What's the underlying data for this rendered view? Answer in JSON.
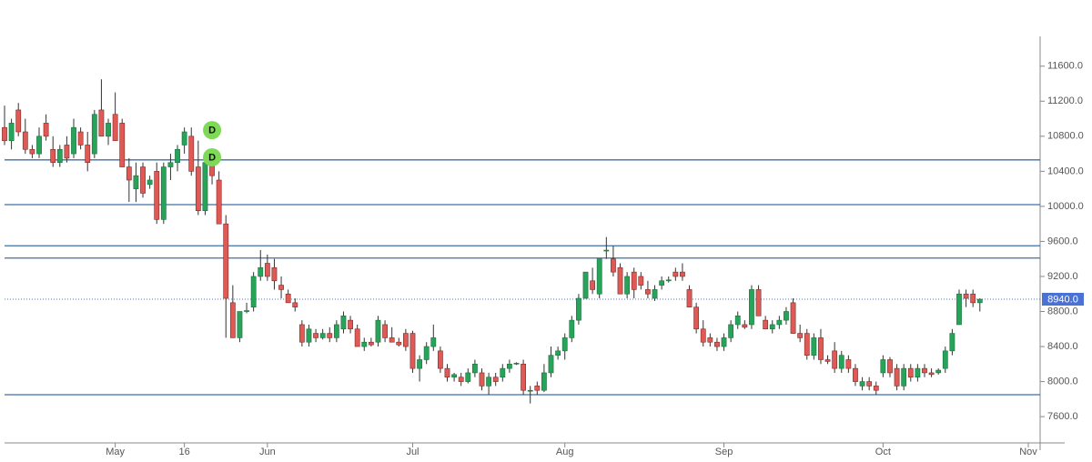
{
  "chart_data": {
    "type": "candlestick",
    "categories": [
      null,
      null,
      null,
      null,
      null,
      null,
      null,
      null,
      null,
      null,
      null,
      null,
      null,
      null,
      null,
      null,
      "May",
      null,
      null,
      null,
      null,
      null,
      null,
      null,
      null,
      null,
      "16",
      null,
      null,
      null,
      null,
      null,
      null,
      null,
      null,
      null,
      null,
      null,
      "Jun",
      null,
      null,
      null,
      null,
      null,
      null,
      null,
      null,
      null,
      null,
      null,
      null,
      null,
      null,
      null,
      null,
      null,
      null,
      null,
      null,
      "Jul",
      null,
      null,
      null,
      null,
      null,
      null,
      null,
      null,
      null,
      null,
      null,
      null,
      null,
      null,
      null,
      null,
      null,
      null,
      null,
      null,
      null,
      "Aug",
      null,
      null,
      null,
      null,
      null,
      null,
      null,
      null,
      null,
      null,
      null,
      null,
      null,
      null,
      null,
      null,
      null,
      null,
      null,
      null,
      null,
      null,
      "Sep",
      null,
      null,
      null,
      null,
      null,
      null,
      null,
      null,
      null,
      null,
      null,
      null,
      null,
      null,
      null,
      null,
      null,
      null,
      null,
      null,
      null,
      null,
      "Oct",
      null,
      null,
      null,
      null,
      null,
      null,
      null,
      null,
      null,
      null,
      null,
      null,
      null,
      null,
      null,
      null,
      null,
      null,
      null,
      null,
      "Nov"
    ],
    "ohlc": [
      [
        10900,
        11150,
        10700,
        10750
      ],
      [
        10750,
        11000,
        10650,
        10950
      ],
      [
        11100,
        11180,
        10800,
        10850
      ],
      [
        10850,
        11000,
        10600,
        10650
      ],
      [
        10650,
        10700,
        10550,
        10600
      ],
      [
        10600,
        10900,
        10550,
        10800
      ],
      [
        10950,
        11050,
        10750,
        10800
      ],
      [
        10650,
        10800,
        10450,
        10500
      ],
      [
        10500,
        10700,
        10450,
        10650
      ],
      [
        10700,
        10800,
        10500,
        10550
      ],
      [
        10600,
        11000,
        10550,
        10900
      ],
      [
        10850,
        10900,
        10650,
        10700
      ],
      [
        10700,
        10850,
        10400,
        10500
      ],
      [
        10600,
        11100,
        10550,
        11050
      ],
      [
        11100,
        11450,
        10800,
        10800
      ],
      [
        10800,
        11000,
        10700,
        10950
      ],
      [
        11050,
        11300,
        10750,
        10750
      ],
      [
        10950,
        11000,
        10450,
        10450
      ],
      [
        10450,
        10550,
        10050,
        10300
      ],
      [
        10200,
        10500,
        10050,
        10350
      ],
      [
        10450,
        10500,
        10100,
        10150
      ],
      [
        10250,
        10350,
        10200,
        10300
      ],
      [
        10400,
        10500,
        9800,
        9850
      ],
      [
        9850,
        10500,
        9800,
        10450
      ],
      [
        10450,
        10600,
        10300,
        10500
      ],
      [
        10500,
        10700,
        10400,
        10650
      ],
      [
        10700,
        10900,
        10600,
        10850
      ],
      [
        10800,
        10900,
        10350,
        10400
      ],
      [
        10450,
        10750,
        9900,
        9950
      ],
      [
        9950,
        10550,
        9900,
        10500
      ],
      [
        10500,
        10550,
        10250,
        10350
      ],
      [
        10300,
        10400,
        9800,
        9800
      ],
      [
        9800,
        9900,
        8500,
        8950
      ],
      [
        8900,
        9100,
        8500,
        8500
      ],
      [
        8500,
        8800,
        8450,
        8800
      ],
      [
        8800,
        8900,
        8780,
        8810
      ],
      [
        8850,
        9250,
        8800,
        9200
      ],
      [
        9200,
        9500,
        9150,
        9300
      ],
      [
        9350,
        9450,
        9150,
        9200
      ],
      [
        9300,
        9400,
        9050,
        9150
      ],
      [
        9100,
        9200,
        8950,
        9050
      ],
      [
        9000,
        9050,
        8900,
        8900
      ],
      [
        8900,
        8950,
        8800,
        8850
      ],
      [
        8650,
        8700,
        8400,
        8450
      ],
      [
        8450,
        8650,
        8400,
        8600
      ],
      [
        8550,
        8600,
        8450,
        8500
      ],
      [
        8500,
        8600,
        8480,
        8550
      ],
      [
        8550,
        8620,
        8450,
        8500
      ],
      [
        8500,
        8700,
        8450,
        8650
      ],
      [
        8600,
        8800,
        8550,
        8750
      ],
      [
        8700,
        8750,
        8550,
        8600
      ],
      [
        8600,
        8650,
        8400,
        8400
      ],
      [
        8400,
        8500,
        8350,
        8450
      ],
      [
        8450,
        8500,
        8400,
        8420
      ],
      [
        8450,
        8750,
        8400,
        8700
      ],
      [
        8650,
        8700,
        8450,
        8500
      ],
      [
        8500,
        8620,
        8450,
        8450
      ],
      [
        8450,
        8500,
        8400,
        8420
      ],
      [
        8550,
        8600,
        8350,
        8400
      ],
      [
        8550,
        8580,
        8100,
        8150
      ],
      [
        8150,
        8300,
        8000,
        8250
      ],
      [
        8250,
        8450,
        8200,
        8400
      ],
      [
        8400,
        8650,
        8350,
        8500
      ],
      [
        8350,
        8400,
        8100,
        8150
      ],
      [
        8150,
        8200,
        8000,
        8050
      ],
      [
        8050,
        8100,
        8000,
        8080
      ],
      [
        8050,
        8100,
        7950,
        8000
      ],
      [
        8000,
        8150,
        7980,
        8100
      ],
      [
        8100,
        8250,
        8050,
        8200
      ],
      [
        8100,
        8150,
        7900,
        7950
      ],
      [
        7950,
        8100,
        7850,
        8050
      ],
      [
        8050,
        8100,
        7950,
        8000
      ],
      [
        8050,
        8200,
        8000,
        8150
      ],
      [
        8150,
        8250,
        8100,
        8200
      ],
      [
        8200,
        8220,
        8190,
        8210
      ],
      [
        8200,
        8250,
        7850,
        7900
      ],
      [
        7900,
        7950,
        7750,
        7900
      ],
      [
        7950,
        8000,
        7850,
        7900
      ],
      [
        7900,
        8200,
        7880,
        8100
      ],
      [
        8100,
        8400,
        8050,
        8300
      ],
      [
        8300,
        8400,
        8250,
        8350
      ],
      [
        8350,
        8550,
        8250,
        8500
      ],
      [
        8500,
        8750,
        8450,
        8700
      ],
      [
        8700,
        9000,
        8650,
        8950
      ],
      [
        8950,
        9250,
        8950,
        9250
      ],
      [
        9150,
        9300,
        9000,
        9050
      ],
      [
        9000,
        9400,
        8950,
        9400
      ],
      [
        9500,
        9650,
        9400,
        9500
      ],
      [
        9400,
        9550,
        9200,
        9250
      ],
      [
        9300,
        9350,
        9000,
        9000
      ],
      [
        9000,
        9250,
        8950,
        9200
      ],
      [
        9250,
        9300,
        8950,
        9050
      ],
      [
        9200,
        9250,
        9050,
        9100
      ],
      [
        9050,
        9150,
        8950,
        9000
      ],
      [
        8950,
        9100,
        8920,
        9050
      ],
      [
        9100,
        9200,
        9050,
        9150
      ],
      [
        9150,
        9200,
        9130,
        9160
      ],
      [
        9250,
        9300,
        9150,
        9200
      ],
      [
        9250,
        9350,
        9150,
        9200
      ],
      [
        9050,
        9100,
        8850,
        8850
      ],
      [
        8850,
        8900,
        8550,
        8600
      ],
      [
        8600,
        8700,
        8400,
        8450
      ],
      [
        8500,
        8550,
        8400,
        8450
      ],
      [
        8450,
        8500,
        8350,
        8400
      ],
      [
        8400,
        8550,
        8350,
        8500
      ],
      [
        8500,
        8700,
        8450,
        8650
      ],
      [
        8650,
        8800,
        8600,
        8750
      ],
      [
        8650,
        8700,
        8600,
        8620
      ],
      [
        8650,
        9100,
        8600,
        9050
      ],
      [
        9050,
        9100,
        8750,
        8750
      ],
      [
        8700,
        8750,
        8600,
        8600
      ],
      [
        8600,
        8700,
        8550,
        8650
      ],
      [
        8650,
        8750,
        8600,
        8700
      ],
      [
        8700,
        8850,
        8650,
        8800
      ],
      [
        8900,
        8950,
        8550,
        8550
      ],
      [
        8550,
        8650,
        8450,
        8500
      ],
      [
        8550,
        8600,
        8250,
        8300
      ],
      [
        8300,
        8550,
        8250,
        8500
      ],
      [
        8500,
        8600,
        8200,
        8250
      ],
      [
        8250,
        8300,
        8200,
        8230
      ],
      [
        8350,
        8450,
        8100,
        8150
      ],
      [
        8150,
        8350,
        8100,
        8300
      ],
      [
        8250,
        8300,
        8100,
        8150
      ],
      [
        8150,
        8200,
        7950,
        8000
      ],
      [
        7950,
        8050,
        7900,
        8000
      ],
      [
        8000,
        8050,
        7900,
        7950
      ],
      [
        7950,
        8000,
        7850,
        7900
      ],
      [
        8100,
        8300,
        8050,
        8250
      ],
      [
        8250,
        8280,
        8050,
        8100
      ],
      [
        8150,
        8200,
        7900,
        7950
      ],
      [
        7950,
        8200,
        7900,
        8150
      ],
      [
        8150,
        8200,
        8000,
        8050
      ],
      [
        8050,
        8200,
        8000,
        8150
      ],
      [
        8150,
        8200,
        8050,
        8100
      ],
      [
        8100,
        8150,
        8050,
        8080
      ],
      [
        8100,
        8150,
        8080,
        8130
      ],
      [
        8150,
        8400,
        8100,
        8350
      ],
      [
        8350,
        8600,
        8300,
        8550
      ],
      [
        8650,
        9050,
        8650,
        9000
      ],
      [
        9000,
        9050,
        8850,
        8950
      ],
      [
        9000,
        9050,
        8850,
        8900
      ],
      [
        8900,
        8950,
        8800,
        8940
      ],
      null,
      null,
      null,
      null,
      null,
      null,
      null
    ],
    "up_color": "#27a45a",
    "down_color": "#e05a55",
    "ylim": [
      7300,
      11940
    ],
    "yticks": [
      {
        "value": 7600,
        "label": "7600.0"
      },
      {
        "value": 8000,
        "label": "8000.0"
      },
      {
        "value": 8400,
        "label": "8400.0"
      },
      {
        "value": 8800,
        "label": "8800.0"
      },
      {
        "value": 9200,
        "label": "9200.0"
      },
      {
        "value": 9600,
        "label": "9600.0"
      },
      {
        "value": 10000,
        "label": "10000.0"
      },
      {
        "value": 10400,
        "label": "10400.0"
      },
      {
        "value": 10800,
        "label": "10800.0"
      },
      {
        "value": 11200,
        "label": "11200.0"
      },
      {
        "value": 11600,
        "label": "11600.0"
      }
    ],
    "levels": [
      10530,
      10020,
      9550,
      9410,
      7850
    ],
    "level_color": "#3d6fa6",
    "last_price": {
      "value": 8940,
      "label": "8940.0",
      "color": "#4a72d4"
    },
    "annotations": [
      {
        "text": "D",
        "index": 30,
        "value": 10870
      },
      {
        "text": "D",
        "index": 30,
        "value": 10560
      }
    ]
  }
}
